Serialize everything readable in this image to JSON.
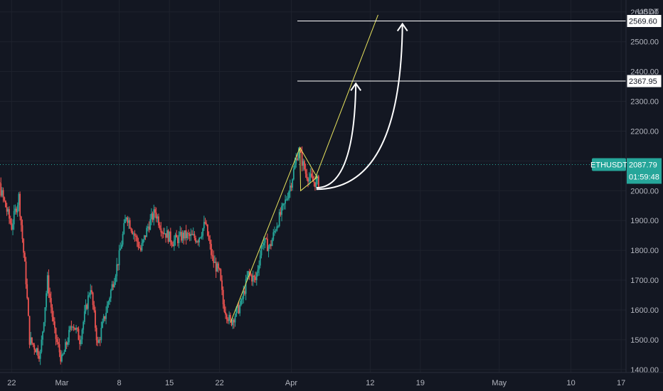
{
  "chart_data": {
    "type": "candlestick",
    "symbol": "ETHUSDT",
    "currency": "USDT",
    "last_price": "2087.79",
    "countdown": "01:59:48",
    "y_axis": {
      "ticks": [
        "1400.00",
        "1500.00",
        "1600.00",
        "1700.00",
        "1800.00",
        "1900.00",
        "2000.00",
        "2100.00",
        "2200.00",
        "2300.00",
        "2400.00",
        "2500.00",
        "2600.00"
      ],
      "ylim": [
        1390,
        2640
      ]
    },
    "x_axis": {
      "ticks": [
        "22",
        "Mar",
        "8",
        "15",
        "22",
        "Apr",
        "12",
        "19",
        "May",
        "10",
        "17"
      ],
      "tick_days": [
        -8,
        -1,
        7,
        14,
        21,
        31,
        42,
        49,
        60,
        70,
        77
      ]
    },
    "grid": true,
    "levels": [
      {
        "label": "2569.60",
        "value": 2569.6
      },
      {
        "label": "2367.95",
        "value": 2367.95
      }
    ],
    "trendlines": [
      {
        "from": [
          22.5,
          1557
        ],
        "to": [
          32.2,
          2145
        ],
        "color": "#e8e35e"
      },
      {
        "from": [
          34.3,
          2040
        ],
        "to": [
          43.1,
          2590
        ],
        "color": "#e8e35e"
      }
    ],
    "triangle": [
      [
        32.2,
        2145
      ],
      [
        34.6,
        2045
      ],
      [
        32.3,
        2000
      ]
    ],
    "arrows": [
      {
        "from": [
          34.5,
          2010
        ],
        "to": [
          40.0,
          2360
        ]
      },
      {
        "from": [
          34.5,
          2005
        ],
        "to": [
          46.5,
          2560
        ]
      }
    ],
    "anchors": [
      [
        -12,
        1935
      ],
      [
        -10,
        2040
      ],
      [
        -8,
        1880
      ],
      [
        -7,
        1980
      ],
      [
        -6,
        1700
      ],
      [
        -5.5,
        1500
      ],
      [
        -4,
        1450
      ],
      [
        -3,
        1700
      ],
      [
        -2,
        1520
      ],
      [
        -1,
        1430
      ],
      [
        0.5,
        1560
      ],
      [
        1.5,
        1500
      ],
      [
        3,
        1680
      ],
      [
        4,
        1480
      ],
      [
        6,
        1680
      ],
      [
        7,
        1780
      ],
      [
        8,
        1920
      ],
      [
        10,
        1800
      ],
      [
        11,
        1880
      ],
      [
        12,
        1930
      ],
      [
        13,
        1870
      ],
      [
        14.5,
        1830
      ],
      [
        16,
        1850
      ],
      [
        18,
        1840
      ],
      [
        19,
        1890
      ],
      [
        20,
        1770
      ],
      [
        21,
        1720
      ],
      [
        21.5,
        1620
      ],
      [
        22.5,
        1557
      ],
      [
        24,
        1620
      ],
      [
        25,
        1720
      ],
      [
        26,
        1700
      ],
      [
        27,
        1830
      ],
      [
        28,
        1810
      ],
      [
        29,
        1890
      ],
      [
        30,
        1950
      ],
      [
        31,
        2030
      ],
      [
        32,
        2140
      ],
      [
        33,
        2060
      ],
      [
        34,
        2030
      ],
      [
        34.8,
        2030
      ]
    ]
  }
}
